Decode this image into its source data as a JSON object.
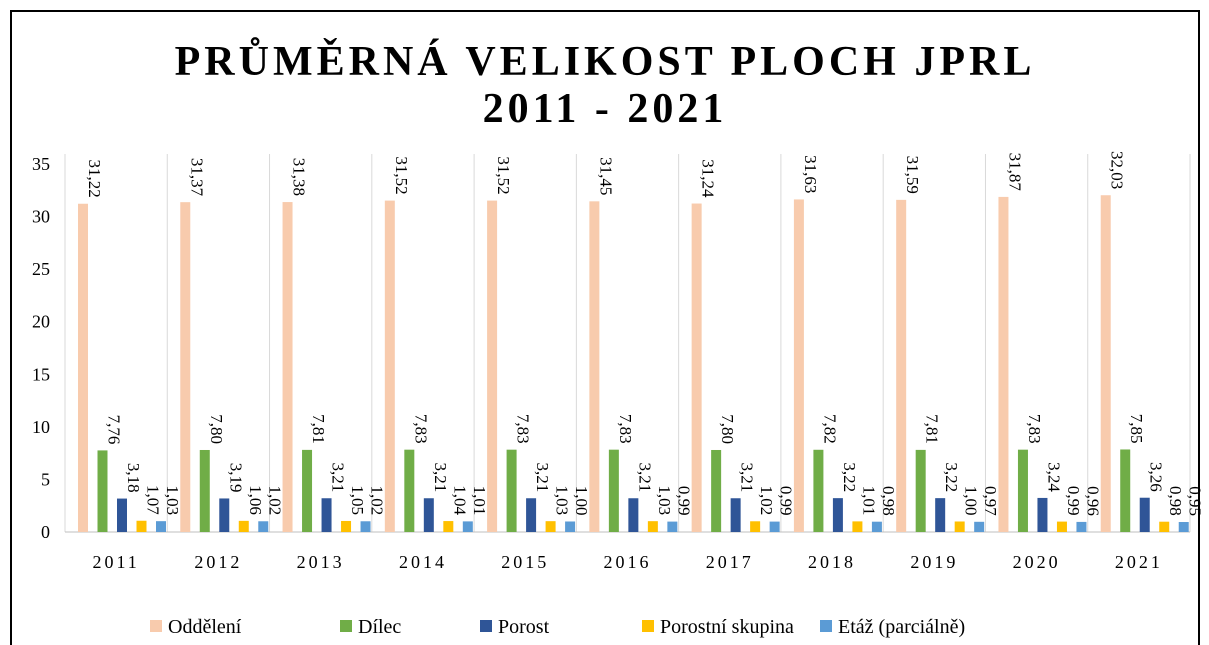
{
  "chart_data": {
    "type": "bar",
    "title": "PRŮMĚRNÁ VELIKOST PLOCH JPRL",
    "subtitle": "2011 - 2021",
    "categories": [
      "2011",
      "2012",
      "2013",
      "2014",
      "2015",
      "2016",
      "2017",
      "2018",
      "2019",
      "2020",
      "2021"
    ],
    "series": [
      {
        "name": "Oddělení",
        "color": "#f8cbad",
        "values": [
          31.22,
          31.37,
          31.38,
          31.52,
          31.52,
          31.45,
          31.24,
          31.63,
          31.59,
          31.87,
          32.03
        ],
        "value_labels": [
          "31,22",
          "31,37",
          "31,38",
          "31,52",
          "31,52",
          "31,45",
          "31,24",
          "31,63",
          "31,59",
          "31,87",
          "32,03"
        ]
      },
      {
        "name": "Dílec",
        "color": "#70ad47",
        "values": [
          7.76,
          7.8,
          7.81,
          7.83,
          7.83,
          7.83,
          7.8,
          7.82,
          7.81,
          7.83,
          7.85
        ],
        "value_labels": [
          "7,76",
          "7,80",
          "7,81",
          "7,83",
          "7,83",
          "7,83",
          "7,80",
          "7,82",
          "7,81",
          "7,83",
          "7,85"
        ]
      },
      {
        "name": "Porost",
        "color": "#2f5597",
        "values": [
          3.18,
          3.19,
          3.21,
          3.21,
          3.21,
          3.21,
          3.21,
          3.22,
          3.22,
          3.24,
          3.26
        ],
        "value_labels": [
          "3,18",
          "3,19",
          "3,21",
          "3,21",
          "3,21",
          "3,21",
          "3,21",
          "3,22",
          "3,22",
          "3,24",
          "3,26"
        ]
      },
      {
        "name": "Porostní skupina",
        "color": "#ffc000",
        "values": [
          1.07,
          1.06,
          1.05,
          1.04,
          1.03,
          1.03,
          1.02,
          1.01,
          1.0,
          0.99,
          0.98
        ],
        "value_labels": [
          "1,07",
          "1,06",
          "1,05",
          "1,04",
          "1,03",
          "1,03",
          "1,02",
          "1,01",
          "1,00",
          "0,99",
          "0,98"
        ]
      },
      {
        "name": "Etáž (parciálně)",
        "color": "#5b9bd5",
        "values": [
          1.03,
          1.02,
          1.02,
          1.01,
          1.0,
          0.99,
          0.99,
          0.98,
          0.97,
          0.96,
          0.95
        ],
        "value_labels": [
          "1,03",
          "1,02",
          "1,02",
          "1,01",
          "1,00",
          "0,99",
          "0,99",
          "0,98",
          "0,97",
          "0,96",
          "0,95"
        ]
      }
    ],
    "ylim": [
      0,
      35
    ],
    "yticks": [
      0,
      5,
      10,
      15,
      20,
      25,
      30,
      35
    ],
    "grid": false,
    "legend": "bottom"
  }
}
